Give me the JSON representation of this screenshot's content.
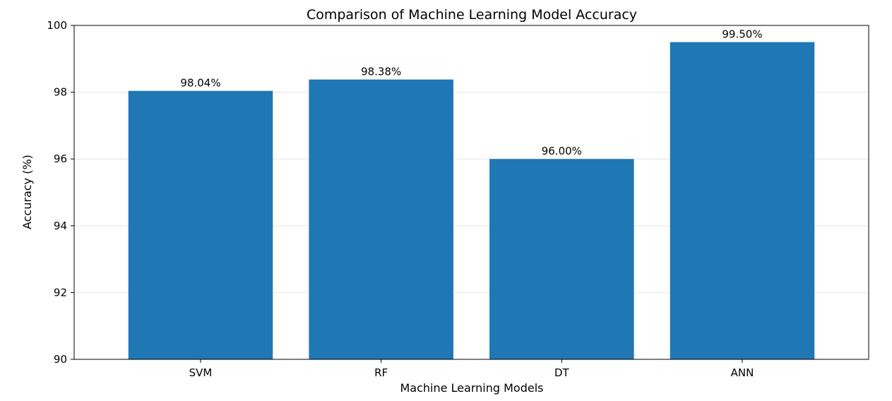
{
  "chart_data": {
    "type": "bar",
    "title": "Comparison of Machine Learning Model Accuracy",
    "xlabel": "Machine Learning Models",
    "ylabel": "Accuracy (%)",
    "categories": [
      "SVM",
      "RF",
      "DT",
      "ANN"
    ],
    "values": [
      98.04,
      98.38,
      96.0,
      99.5
    ],
    "data_labels": [
      "98.04%",
      "98.38%",
      "96.00%",
      "99.50%"
    ],
    "ylim": [
      90,
      100
    ],
    "yticks": [
      90,
      92,
      94,
      96,
      98,
      100
    ],
    "ytick_labels": [
      "90",
      "92",
      "94",
      "96",
      "98",
      "100"
    ],
    "grid": "y",
    "bar_color": "#1f77b4",
    "grid_color": "#e6e6e6"
  }
}
